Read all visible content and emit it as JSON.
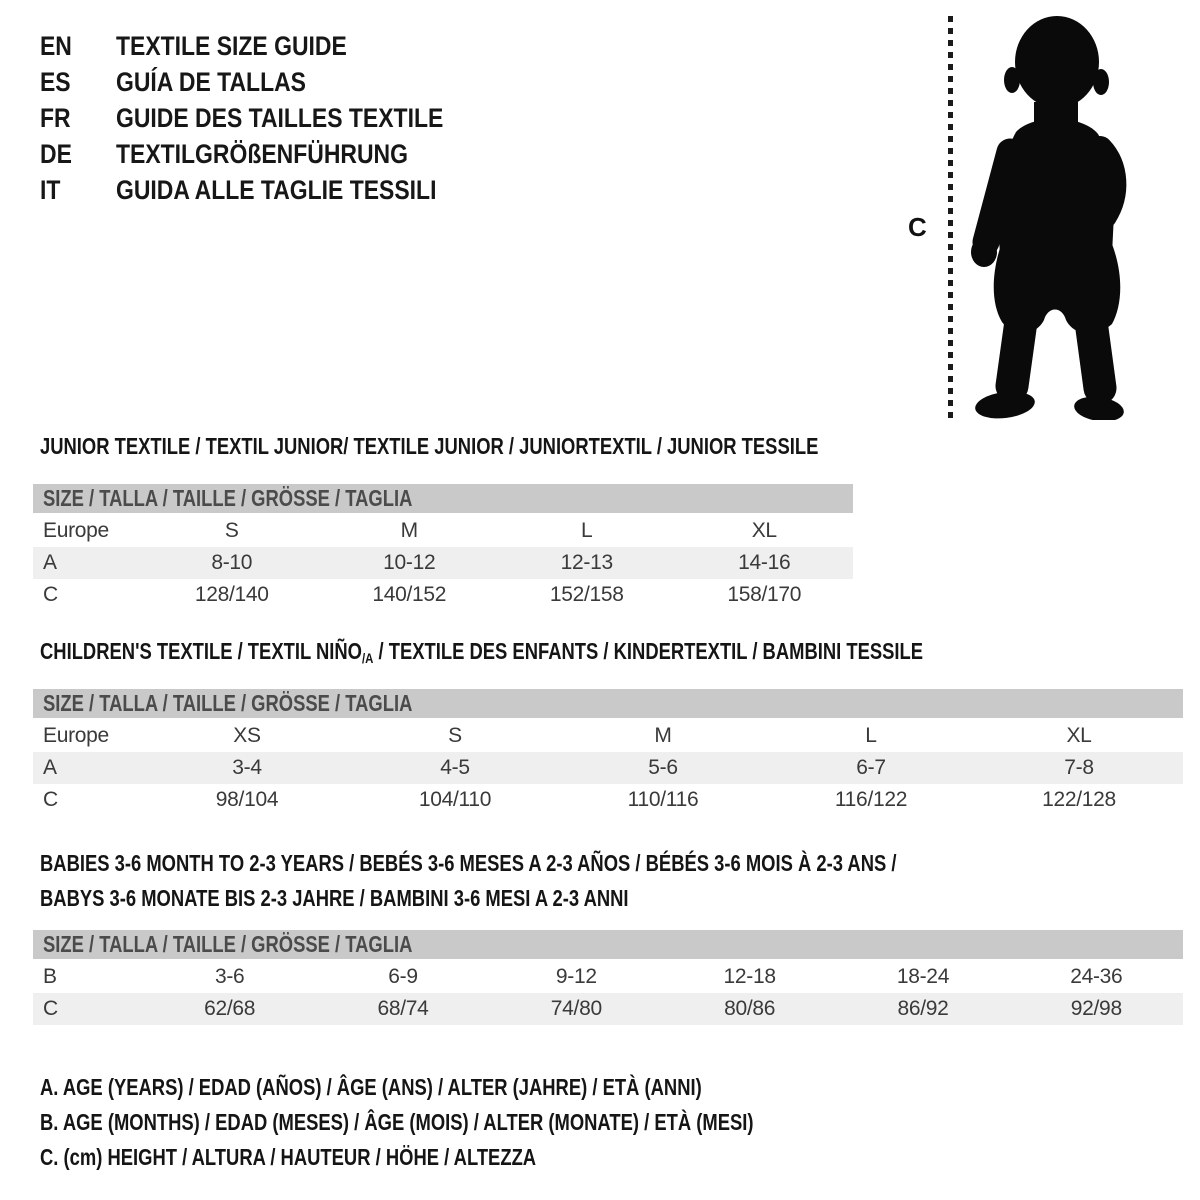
{
  "languages": [
    {
      "code": "EN",
      "title": "TEXTILE SIZE GUIDE"
    },
    {
      "code": "ES",
      "title": "GUÍA DE TALLAS"
    },
    {
      "code": "FR",
      "title": "GUIDE DES TAILLES TEXTILE"
    },
    {
      "code": "DE",
      "title": "TEXTILGRÖßENFÜHRUNG"
    },
    {
      "code": "IT",
      "title": "GUIDA ALLE TAGLIE TESSILI"
    }
  ],
  "figure": {
    "measure_label": "C",
    "icon": "toddler-silhouette",
    "silhouette_color": "#0a0a0a"
  },
  "colors": {
    "size_band": "#c9c9c9",
    "shaded_row": "#efefef",
    "title_text": "#151515",
    "table_text": "#3a3a3a",
    "band_text": "#4b4b4b"
  },
  "junior": {
    "title": "JUNIOR TEXTILE / TEXTIL JUNIOR/ TEXTILE JUNIOR / JUNIORTEXTIL / JUNIOR TESSILE",
    "size_header": "SIZE / TALLA / TAILLE / GRÖSSE / TAGLIA",
    "rows": [
      {
        "label": "Europe",
        "values": [
          "S",
          "M",
          "L",
          "XL"
        ],
        "shaded": false
      },
      {
        "label": "A",
        "values": [
          "8-10",
          "10-12",
          "12-13",
          "14-16"
        ],
        "shaded": true
      },
      {
        "label": "C",
        "values": [
          "128/140",
          "140/152",
          "152/158",
          "158/170"
        ],
        "shaded": false
      }
    ]
  },
  "children": {
    "title_pre": "CHILDREN'S TEXTILE / TEXTIL NIÑO",
    "title_sub": "/A",
    "title_post": " / TEXTILE DES ENFANTS / KINDERTEXTIL / BAMBINI TESSILE",
    "size_header": "SIZE / TALLA / TAILLE / GRÖSSE / TAGLIA",
    "rows": [
      {
        "label": "Europe",
        "values": [
          "XS",
          "S",
          "M",
          "L",
          "XL"
        ],
        "shaded": false
      },
      {
        "label": "A",
        "values": [
          "3-4",
          "4-5",
          "5-6",
          "6-7",
          "7-8"
        ],
        "shaded": true
      },
      {
        "label": "C",
        "values": [
          "98/104",
          "104/110",
          "110/116",
          "116/122",
          "122/128"
        ],
        "shaded": false
      }
    ]
  },
  "babies": {
    "title_line1": "BABIES 3-6 MONTH TO 2-3 YEARS / BEBÉS 3-6 MESES A 2-3 AÑOS / BÉBÉS 3-6 MOIS À 2-3 ANS /",
    "title_line2": "BABYS 3-6 MONATE BIS 2-3 JAHRE / BAMBINI 3-6 MESI A 2-3 ANNI",
    "size_header": "SIZE / TALLA / TAILLE / GRÖSSE / TAGLIA",
    "rows": [
      {
        "label": "B",
        "values": [
          "3-6",
          "6-9",
          "9-12",
          "12-18",
          "18-24",
          "24-36"
        ],
        "shaded": false
      },
      {
        "label": "C",
        "values": [
          "62/68",
          "68/74",
          "74/80",
          "80/86",
          "86/92",
          "92/98"
        ],
        "shaded": true
      }
    ]
  },
  "legend": [
    "A. AGE (YEARS) / EDAD (AÑOS) / ÂGE (ANS) / ALTER (JAHRE) / ETÀ (ANNI)",
    "B. AGE (MONTHS) / EDAD (MESES) / ÂGE (MOIS) / ALTER (MONATE) / ETÀ (MESI)",
    "C. (cm) HEIGHT / ALTURA / HAUTEUR / HÖHE / ALTEZZA"
  ]
}
